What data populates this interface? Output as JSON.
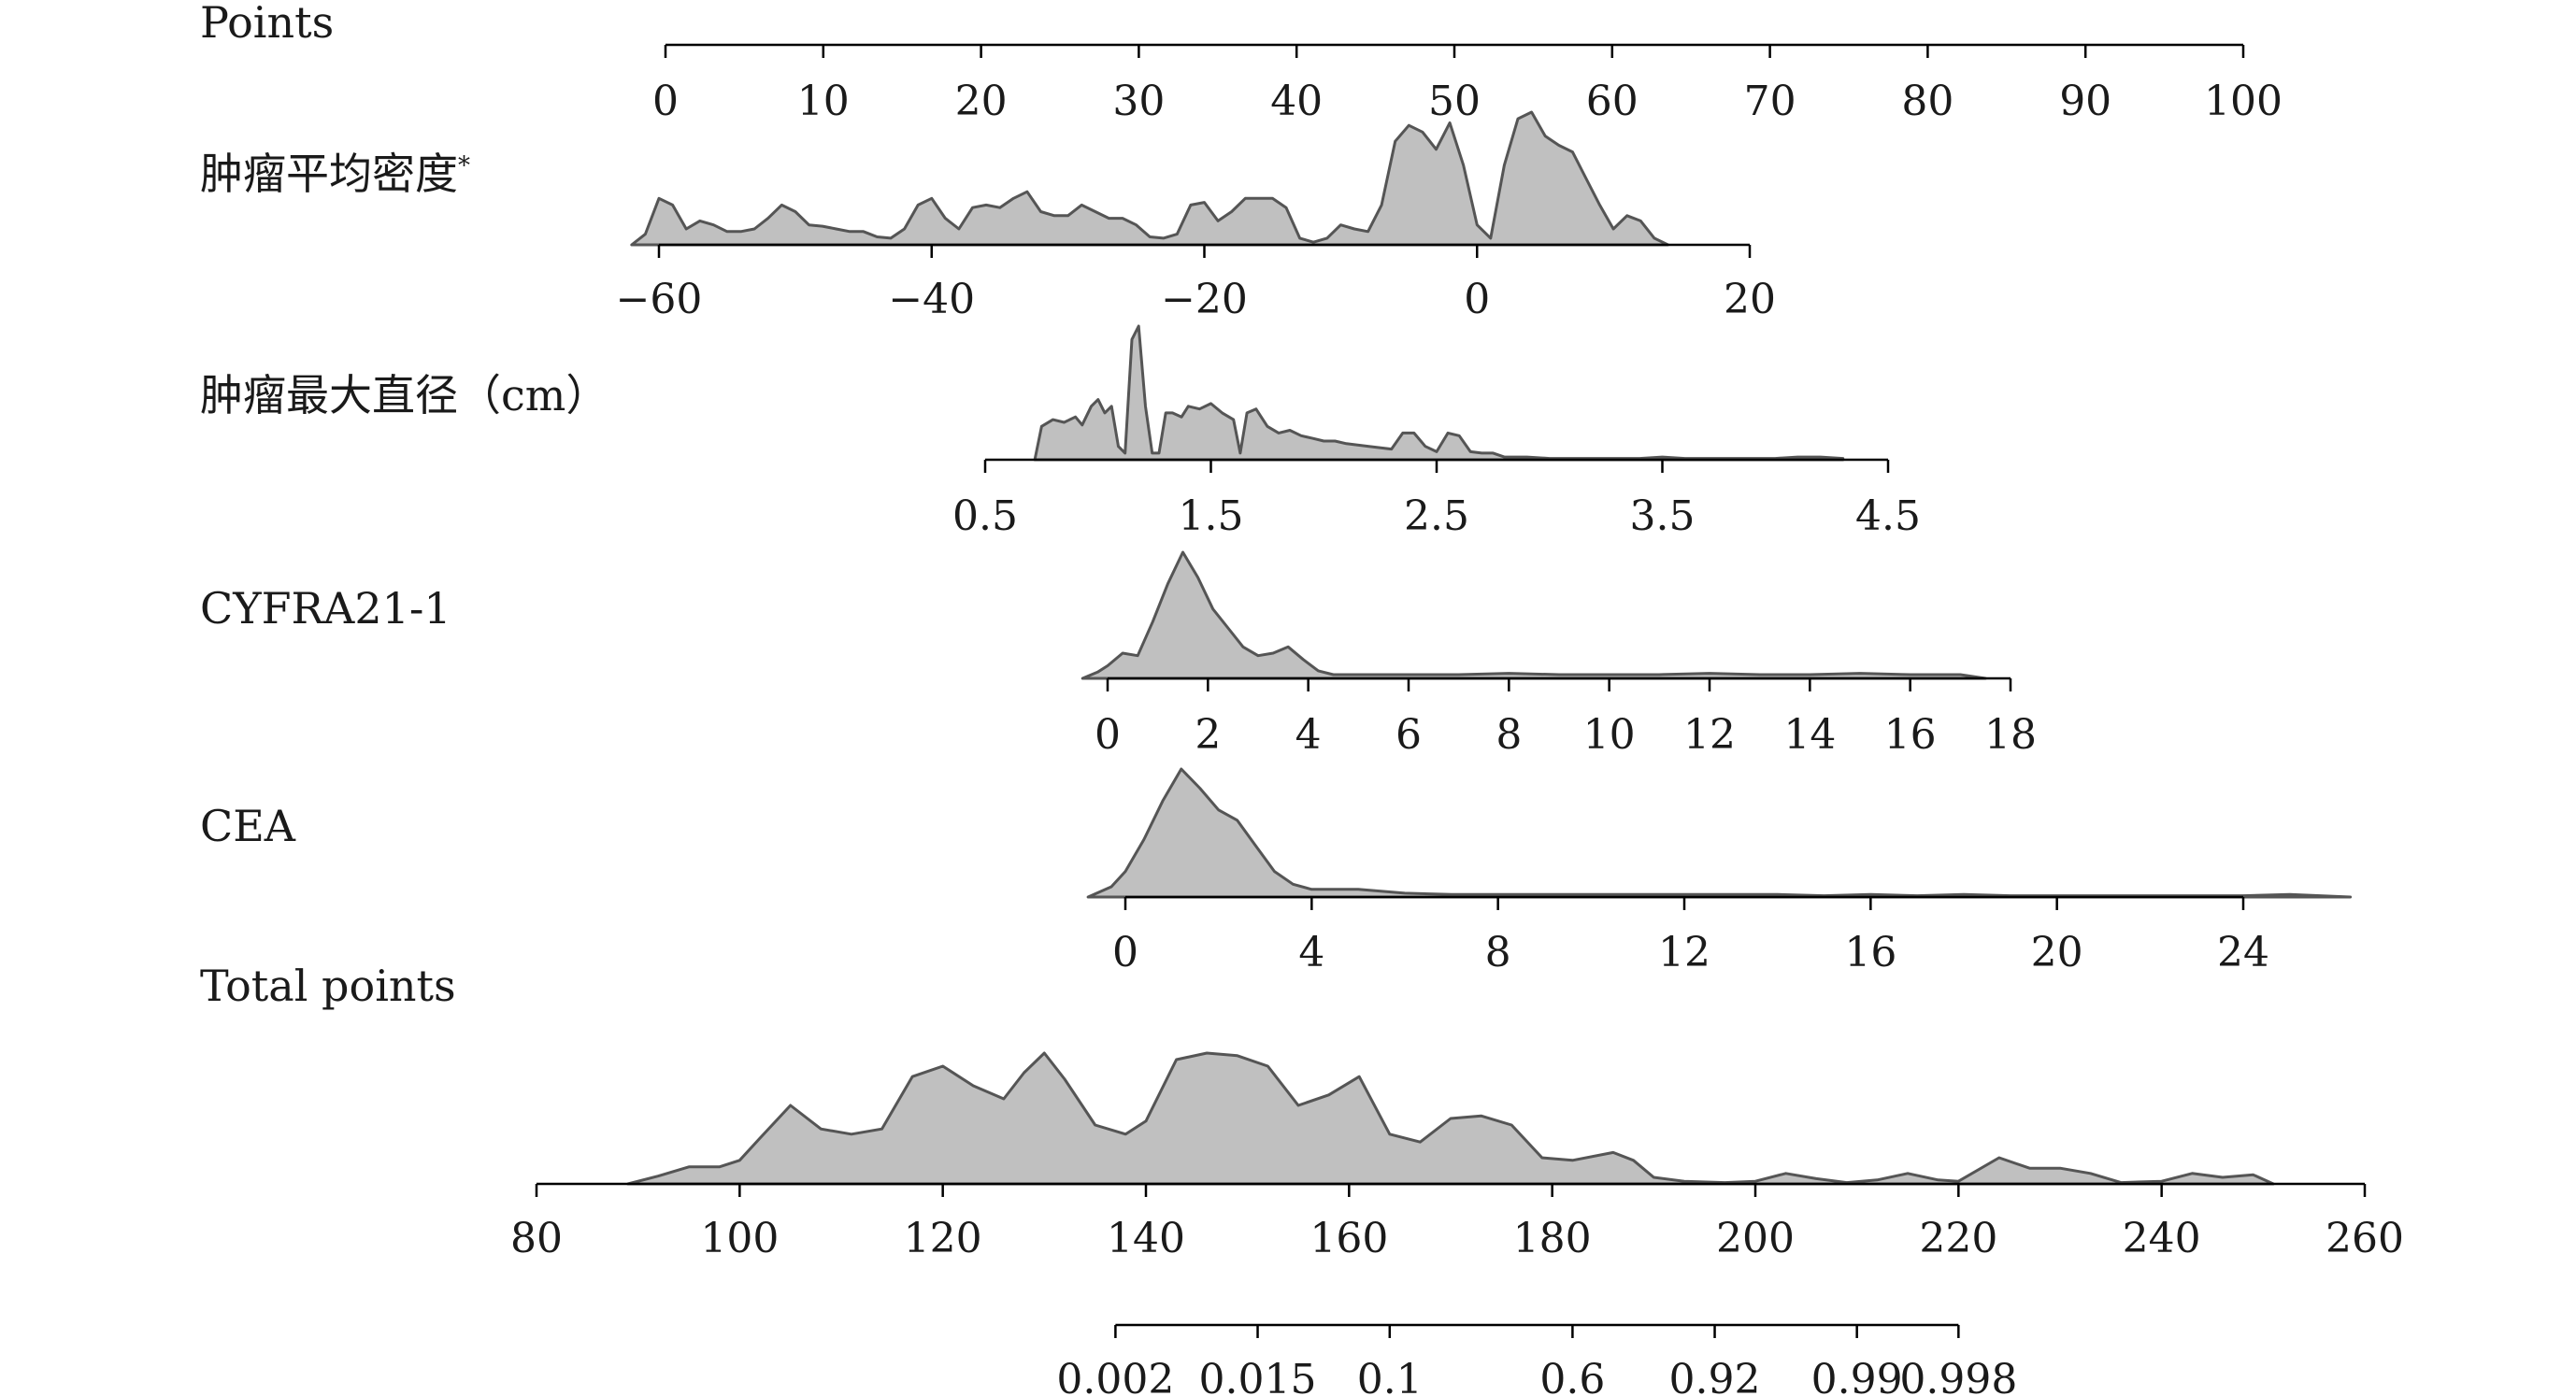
{
  "chart_data": {
    "type": "nomogram",
    "rows": [
      {
        "name": "Points",
        "ticks": [
          "0",
          "10",
          "20",
          "30",
          "40",
          "50",
          "60",
          "70",
          "80",
          "90",
          "100"
        ],
        "range": [
          0,
          100
        ]
      },
      {
        "name": "肿瘤平均密度",
        "suffix": "*",
        "ticks": [
          "−60",
          "−40",
          "−20",
          "0",
          "20"
        ],
        "range": [
          -60,
          20
        ],
        "density": {
          "x": [
            -62,
            -61,
            -60,
            -59,
            -58,
            -57,
            -56,
            -55,
            -54,
            -53,
            -52,
            -51,
            -50,
            -49,
            -48,
            -47,
            -46,
            -45,
            -44,
            -43,
            -42,
            -41,
            -40,
            -39,
            -38,
            -37,
            -36,
            -35,
            -34,
            -33,
            -32,
            -31,
            -30,
            -29,
            -28,
            -27,
            -26,
            -25,
            -24,
            -23,
            -22,
            -21,
            -20,
            -19,
            -18,
            -17,
            -16,
            -15,
            -14,
            -13,
            -12,
            -11,
            -10,
            -9,
            -8,
            -7,
            -6,
            -5,
            -4,
            -3,
            -2,
            -1,
            0,
            1,
            2,
            3,
            4,
            5,
            6,
            7,
            8,
            9,
            10,
            11,
            12,
            13,
            14
          ],
          "y": [
            0,
            0.08,
            0.35,
            0.3,
            0.12,
            0.18,
            0.15,
            0.1,
            0.1,
            0.12,
            0.2,
            0.3,
            0.25,
            0.15,
            0.14,
            0.12,
            0.1,
            0.1,
            0.06,
            0.05,
            0.12,
            0.3,
            0.35,
            0.2,
            0.12,
            0.28,
            0.3,
            0.28,
            0.35,
            0.4,
            0.25,
            0.22,
            0.22,
            0.3,
            0.25,
            0.2,
            0.2,
            0.15,
            0.06,
            0.05,
            0.08,
            0.3,
            0.32,
            0.18,
            0.25,
            0.35,
            0.35,
            0.35,
            0.28,
            0.05,
            0.02,
            0.05,
            0.15,
            0.12,
            0.1,
            0.3,
            0.78,
            0.9,
            0.85,
            0.72,
            0.92,
            0.6,
            0.15,
            0.05,
            0.6,
            0.95,
            1.0,
            0.82,
            0.75,
            0.7,
            0.5,
            0.3,
            0.12,
            0.22,
            0.18,
            0.05,
            0
          ]
        }
      },
      {
        "name": "肿瘤最大直径（cm）",
        "ticks": [
          "0.5",
          "1.5",
          "2.5",
          "3.5",
          "4.5"
        ],
        "range": [
          0.5,
          4.5
        ],
        "density": {
          "x": [
            0.72,
            0.75,
            0.8,
            0.85,
            0.9,
            0.93,
            0.97,
            1.0,
            1.03,
            1.06,
            1.09,
            1.12,
            1.15,
            1.18,
            1.21,
            1.24,
            1.27,
            1.3,
            1.33,
            1.37,
            1.4,
            1.45,
            1.5,
            1.55,
            1.6,
            1.63,
            1.66,
            1.7,
            1.75,
            1.8,
            1.85,
            1.9,
            1.95,
            2.0,
            2.05,
            2.1,
            2.2,
            2.3,
            2.35,
            2.4,
            2.45,
            2.5,
            2.55,
            2.6,
            2.65,
            2.7,
            2.75,
            2.8,
            2.9,
            3.0,
            3.2,
            3.4,
            3.5,
            3.6,
            3.8,
            4.0,
            4.1,
            4.2,
            4.3
          ],
          "y": [
            0,
            0.25,
            0.3,
            0.28,
            0.32,
            0.26,
            0.4,
            0.45,
            0.35,
            0.4,
            0.1,
            0.05,
            0.9,
            1.0,
            0.4,
            0.05,
            0.05,
            0.35,
            0.35,
            0.32,
            0.4,
            0.38,
            0.42,
            0.35,
            0.3,
            0.05,
            0.35,
            0.38,
            0.25,
            0.2,
            0.22,
            0.18,
            0.16,
            0.14,
            0.14,
            0.12,
            0.1,
            0.08,
            0.2,
            0.2,
            0.1,
            0.06,
            0.2,
            0.18,
            0.06,
            0.05,
            0.05,
            0.02,
            0.02,
            0.01,
            0.01,
            0.01,
            0.02,
            0.01,
            0.01,
            0.01,
            0.02,
            0.02,
            0.01
          ]
        }
      },
      {
        "name": "CYFRA21-1",
        "ticks": [
          "0",
          "2",
          "4",
          "6",
          "8",
          "10",
          "12",
          "14",
          "16",
          "18"
        ],
        "range": [
          0,
          18
        ],
        "density": {
          "x": [
            -0.5,
            -0.2,
            0,
            0.3,
            0.6,
            0.9,
            1.2,
            1.5,
            1.8,
            2.1,
            2.4,
            2.7,
            3.0,
            3.3,
            3.6,
            3.9,
            4.2,
            4.5,
            5,
            6,
            7,
            8,
            9,
            10,
            11,
            12,
            13,
            14,
            15,
            16,
            17,
            17.5
          ],
          "y": [
            0,
            0.05,
            0.1,
            0.2,
            0.18,
            0.45,
            0.75,
            1.0,
            0.8,
            0.55,
            0.4,
            0.25,
            0.18,
            0.2,
            0.25,
            0.15,
            0.06,
            0.03,
            0.03,
            0.03,
            0.03,
            0.04,
            0.03,
            0.03,
            0.03,
            0.04,
            0.03,
            0.03,
            0.04,
            0.03,
            0.03,
            0
          ]
        }
      },
      {
        "name": "CEA",
        "ticks": [
          "0",
          "4",
          "8",
          "12",
          "16",
          "20",
          "24"
        ],
        "range": [
          0,
          24
        ],
        "density": {
          "x": [
            -0.8,
            -0.3,
            0,
            0.4,
            0.8,
            1.2,
            1.6,
            2.0,
            2.4,
            2.8,
            3.2,
            3.6,
            4.0,
            5,
            6,
            7,
            8,
            9,
            10,
            11,
            12,
            13,
            14,
            15,
            16,
            17,
            18,
            19,
            20,
            21,
            22,
            23,
            24,
            25,
            26.3
          ],
          "y": [
            0,
            0.08,
            0.2,
            0.45,
            0.75,
            1.0,
            0.85,
            0.68,
            0.6,
            0.4,
            0.2,
            0.1,
            0.06,
            0.06,
            0.03,
            0.02,
            0.02,
            0.02,
            0.02,
            0.02,
            0.02,
            0.02,
            0.02,
            0.01,
            0.02,
            0.01,
            0.02,
            0.01,
            0.01,
            0.01,
            0.01,
            0.01,
            0.01,
            0.02,
            0
          ]
        }
      },
      {
        "name": "Total points",
        "ticks": [
          "80",
          "100",
          "120",
          "140",
          "160",
          "180",
          "200",
          "220",
          "240",
          "260"
        ],
        "range": [
          80,
          260
        ],
        "density": {
          "x": [
            89,
            92,
            95,
            98,
            100,
            102,
            105,
            108,
            111,
            114,
            117,
            120,
            123,
            126,
            128,
            130,
            132,
            135,
            138,
            140,
            143,
            146,
            149,
            152,
            155,
            158,
            161,
            164,
            167,
            170,
            173,
            176,
            179,
            182,
            186,
            188,
            190,
            193,
            197,
            200,
            203,
            206,
            209,
            212,
            215,
            218,
            220,
            224,
            227,
            230,
            233,
            236,
            240,
            243,
            246,
            249,
            251
          ],
          "y": [
            0,
            0.06,
            0.13,
            0.13,
            0.18,
            0.35,
            0.6,
            0.42,
            0.38,
            0.42,
            0.82,
            0.9,
            0.75,
            0.65,
            0.85,
            1.0,
            0.8,
            0.45,
            0.38,
            0.48,
            0.95,
            1.0,
            0.98,
            0.9,
            0.6,
            0.68,
            0.82,
            0.38,
            0.32,
            0.5,
            0.52,
            0.45,
            0.2,
            0.18,
            0.24,
            0.18,
            0.05,
            0.02,
            0.01,
            0.02,
            0.08,
            0.04,
            0.01,
            0.03,
            0.08,
            0.03,
            0.02,
            0.2,
            0.12,
            0.12,
            0.08,
            0.01,
            0.02,
            0.08,
            0.05,
            0.07,
            0
          ]
        }
      }
    ],
    "probability_axis": {
      "ticks": [
        {
          "label": "0.002",
          "at_total": 137
        },
        {
          "label": "0.015",
          "at_total": 151
        },
        {
          "label": "0.1",
          "at_total": 164
        },
        {
          "label": "0.6",
          "at_total": 182
        },
        {
          "label": "0.92",
          "at_total": 196
        },
        {
          "label": "0.99",
          "at_total": 210
        },
        {
          "label": "0.998",
          "at_total": 220
        }
      ]
    }
  }
}
